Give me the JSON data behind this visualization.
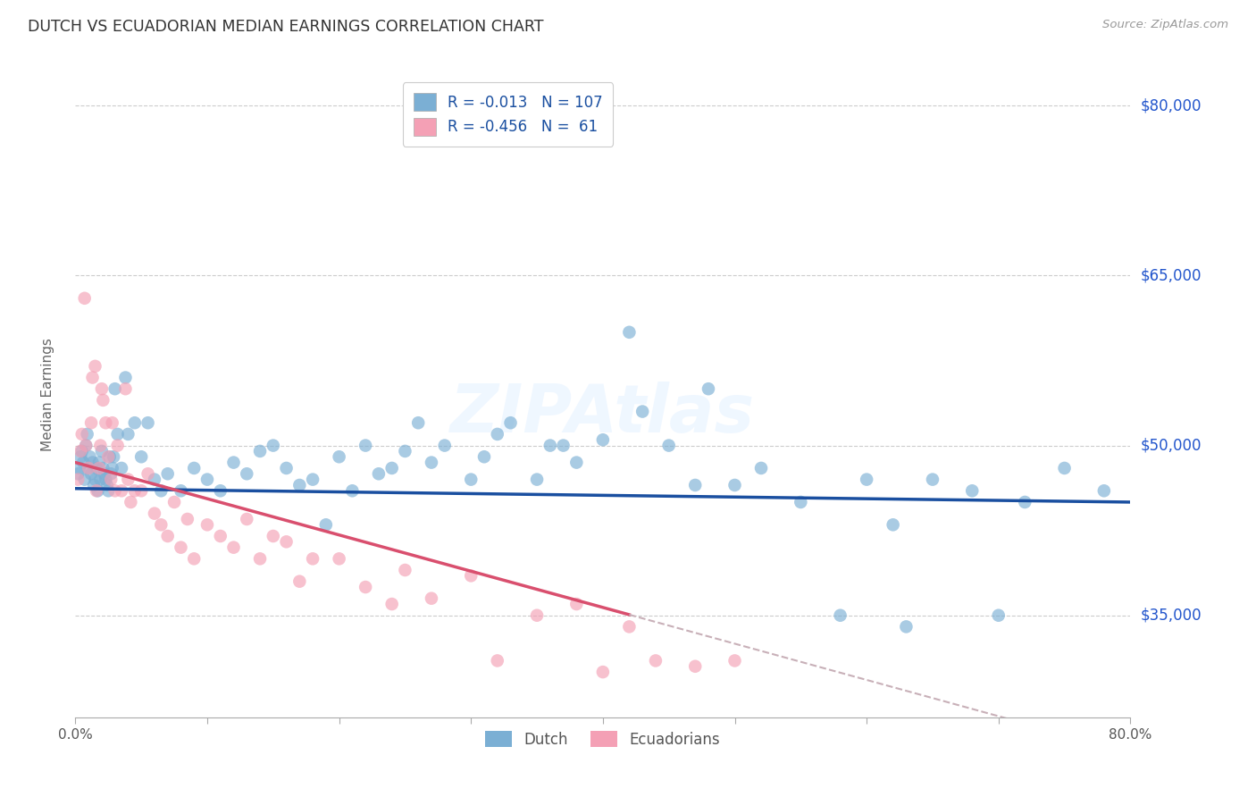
{
  "title": "DUTCH VS ECUADORIAN MEDIAN EARNINGS CORRELATION CHART",
  "source": "Source: ZipAtlas.com",
  "ylabel": "Median Earnings",
  "x_min": 0.0,
  "x_max": 80.0,
  "y_min": 26000,
  "y_max": 83000,
  "yticks": [
    35000,
    50000,
    65000,
    80000
  ],
  "ytick_labels": [
    "$35,000",
    "$50,000",
    "$65,000",
    "$80,000"
  ],
  "xticks": [
    0.0,
    10.0,
    20.0,
    30.0,
    40.0,
    50.0,
    60.0,
    70.0,
    80.0
  ],
  "legend_dutch_label": "R = -0.013   N = 107",
  "legend_ecu_label": "R = -0.456   N =  61",
  "dutch_color": "#7bafd4",
  "ecu_color": "#f4a0b5",
  "dutch_line_color": "#1a4fa0",
  "ecu_line_color": "#d94f6e",
  "ecu_dashed_color": "#c8b0b8",
  "watermark": "ZIPAtlas",
  "dutch_line_intercept": 46200,
  "dutch_line_slope": -15,
  "ecu_line_intercept": 48500,
  "ecu_line_slope": -320,
  "ecu_solid_end_x": 42,
  "dutch_x": [
    0.2,
    0.3,
    0.4,
    0.5,
    0.6,
    0.7,
    0.8,
    0.9,
    1.0,
    1.1,
    1.2,
    1.3,
    1.4,
    1.5,
    1.6,
    1.7,
    1.8,
    1.9,
    2.0,
    2.1,
    2.2,
    2.3,
    2.4,
    2.5,
    2.6,
    2.7,
    2.8,
    2.9,
    3.0,
    3.2,
    3.5,
    3.8,
    4.0,
    4.5,
    5.0,
    5.5,
    6.0,
    6.5,
    7.0,
    8.0,
    9.0,
    10.0,
    11.0,
    12.0,
    13.0,
    14.0,
    15.0,
    16.0,
    17.0,
    18.0,
    19.0,
    20.0,
    21.0,
    22.0,
    23.0,
    24.0,
    25.0,
    26.0,
    27.0,
    28.0,
    30.0,
    31.0,
    32.0,
    33.0,
    35.0,
    36.0,
    37.0,
    38.0,
    40.0,
    42.0,
    43.0,
    45.0,
    47.0,
    48.0,
    50.0,
    52.0,
    55.0,
    58.0,
    60.0,
    62.0,
    63.0,
    65.0,
    68.0,
    70.0,
    72.0,
    75.0,
    78.0
  ],
  "dutch_y": [
    47500,
    48000,
    49000,
    49500,
    48500,
    47000,
    50000,
    51000,
    48000,
    49000,
    47500,
    48500,
    46500,
    47000,
    48000,
    46000,
    48500,
    47000,
    49500,
    48000,
    47500,
    47000,
    46500,
    46000,
    49000,
    47500,
    48000,
    49000,
    55000,
    51000,
    48000,
    56000,
    51000,
    52000,
    49000,
    52000,
    47000,
    46000,
    47500,
    46000,
    48000,
    47000,
    46000,
    48500,
    47500,
    49500,
    50000,
    48000,
    46500,
    47000,
    43000,
    49000,
    46000,
    50000,
    47500,
    48000,
    49500,
    52000,
    48500,
    50000,
    47000,
    49000,
    51000,
    52000,
    47000,
    50000,
    50000,
    48500,
    50500,
    60000,
    53000,
    50000,
    46500,
    55000,
    46500,
    48000,
    45000,
    35000,
    47000,
    43000,
    34000,
    47000,
    46000,
    35000,
    45000,
    48000,
    46000
  ],
  "ecu_x": [
    0.2,
    0.4,
    0.5,
    0.7,
    0.8,
    1.0,
    1.2,
    1.3,
    1.5,
    1.6,
    1.8,
    1.9,
    2.0,
    2.1,
    2.3,
    2.5,
    2.7,
    2.8,
    3.0,
    3.2,
    3.5,
    3.8,
    4.0,
    4.2,
    4.5,
    5.0,
    5.5,
    6.0,
    6.5,
    7.0,
    7.5,
    8.0,
    8.5,
    9.0,
    10.0,
    11.0,
    12.0,
    13.0,
    14.0,
    15.0,
    16.0,
    17.0,
    18.0,
    20.0,
    22.0,
    24.0,
    25.0,
    27.0,
    30.0,
    32.0,
    35.0,
    38.0,
    40.0,
    42.0,
    44.0,
    47.0,
    50.0
  ],
  "ecu_y": [
    47000,
    49500,
    51000,
    63000,
    50000,
    48000,
    52000,
    56000,
    57000,
    46000,
    48000,
    50000,
    55000,
    54000,
    52000,
    49000,
    47000,
    52000,
    46000,
    50000,
    46000,
    55000,
    47000,
    45000,
    46000,
    46000,
    47500,
    44000,
    43000,
    42000,
    45000,
    41000,
    43500,
    40000,
    43000,
    42000,
    41000,
    43500,
    40000,
    42000,
    41500,
    38000,
    40000,
    40000,
    37500,
    36000,
    39000,
    36500,
    38500,
    31000,
    35000,
    36000,
    30000,
    34000,
    31000,
    30500,
    31000
  ]
}
